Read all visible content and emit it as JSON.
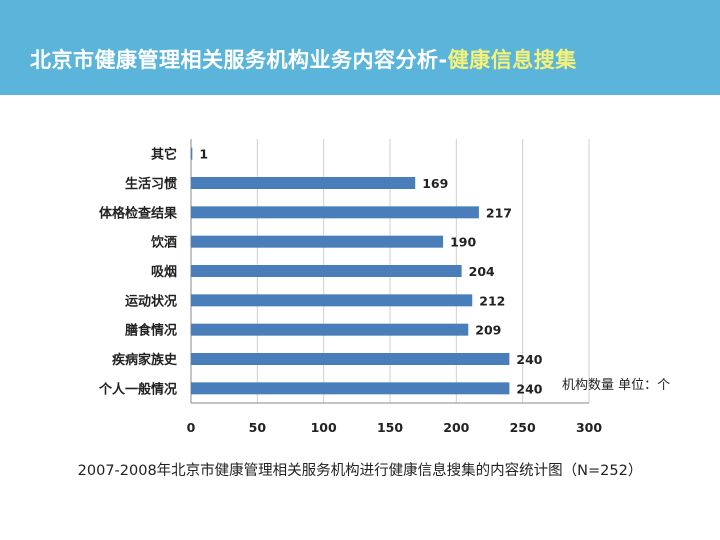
{
  "header": {
    "title_main": "北京市健康管理相关服务机构业务内容分析-",
    "title_highlight": "健康信息搜集"
  },
  "caption": "2007-2008年北京市健康管理相关服务机构进行健康信息搜集的内容统计图（N=252）",
  "colors": {
    "header_bg": "#5bb4d9",
    "highlight": "#f4f27a",
    "bar": "#4a7ebb"
  },
  "chart_data": {
    "type": "bar",
    "orientation": "horizontal",
    "categories": [
      "其它",
      "生活习惯",
      "体格检查结果",
      "饮酒",
      "吸烟",
      "运动状况",
      "膳食情况",
      "疾病家族史",
      "个人一般情况"
    ],
    "values": [
      1,
      169,
      217,
      190,
      204,
      212,
      209,
      240,
      240
    ],
    "xlim": [
      0,
      300
    ],
    "xticks": [
      0,
      50,
      100,
      150,
      200,
      250,
      300
    ],
    "grid": true,
    "unit_label": "机构数量 单位：个"
  }
}
